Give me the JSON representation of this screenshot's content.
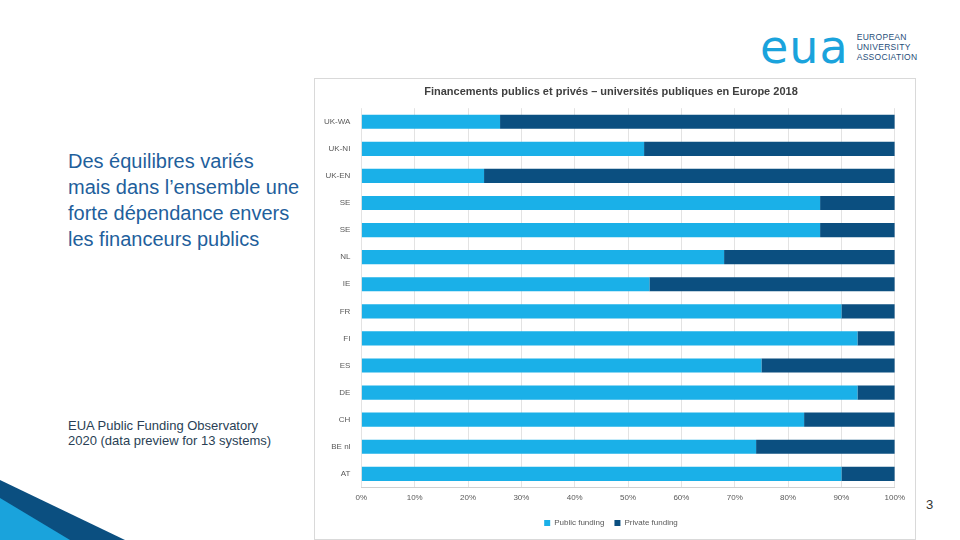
{
  "heading": "Des équilibres variés mais dans l’ensemble une forte dépendance envers les financeurs publics",
  "source": "EUA Public Funding Observatory 2020 (data preview for 13 systems)",
  "logo": {
    "mark": "eua",
    "lines": [
      "EUROPEAN",
      "UNIVERSITY",
      "ASSOCIATION"
    ]
  },
  "page_number": 3,
  "chart_data": {
    "type": "bar",
    "orientation": "horizontal",
    "stacked": true,
    "title": "Financements publics et privés – universités publiques en Europe 2018",
    "categories": [
      "UK-WA",
      "UK-NI",
      "UK-EN",
      "SE",
      "SE",
      "NL",
      "IE",
      "FR",
      "FI",
      "ES",
      "DE",
      "CH",
      "BE nl",
      "AT"
    ],
    "series": [
      {
        "name": "Public funding",
        "color": "#1ab0e8",
        "values": [
          26,
          53,
          23,
          86,
          86,
          68,
          54,
          90,
          93,
          75,
          93,
          83,
          74,
          90
        ]
      },
      {
        "name": "Private funding",
        "color": "#0b4f80",
        "values": [
          74,
          47,
          77,
          14,
          14,
          32,
          46,
          10,
          7,
          25,
          7,
          17,
          26,
          10
        ]
      }
    ],
    "xlim": [
      0,
      100
    ],
    "xticks": [
      {
        "value": 0,
        "label": "0%"
      },
      {
        "value": 10,
        "label": "10%"
      },
      {
        "value": 20,
        "label": "20%"
      },
      {
        "value": 30,
        "label": "30%"
      },
      {
        "value": 40,
        "label": "40%"
      },
      {
        "value": 50,
        "label": "50%"
      },
      {
        "value": 60,
        "label": "60%"
      },
      {
        "value": 70,
        "label": "70%"
      },
      {
        "value": 80,
        "label": "80%"
      },
      {
        "value": 90,
        "label": "90%"
      },
      {
        "value": 100,
        "label": "100%"
      }
    ],
    "grid": true,
    "legend": "bottom"
  }
}
